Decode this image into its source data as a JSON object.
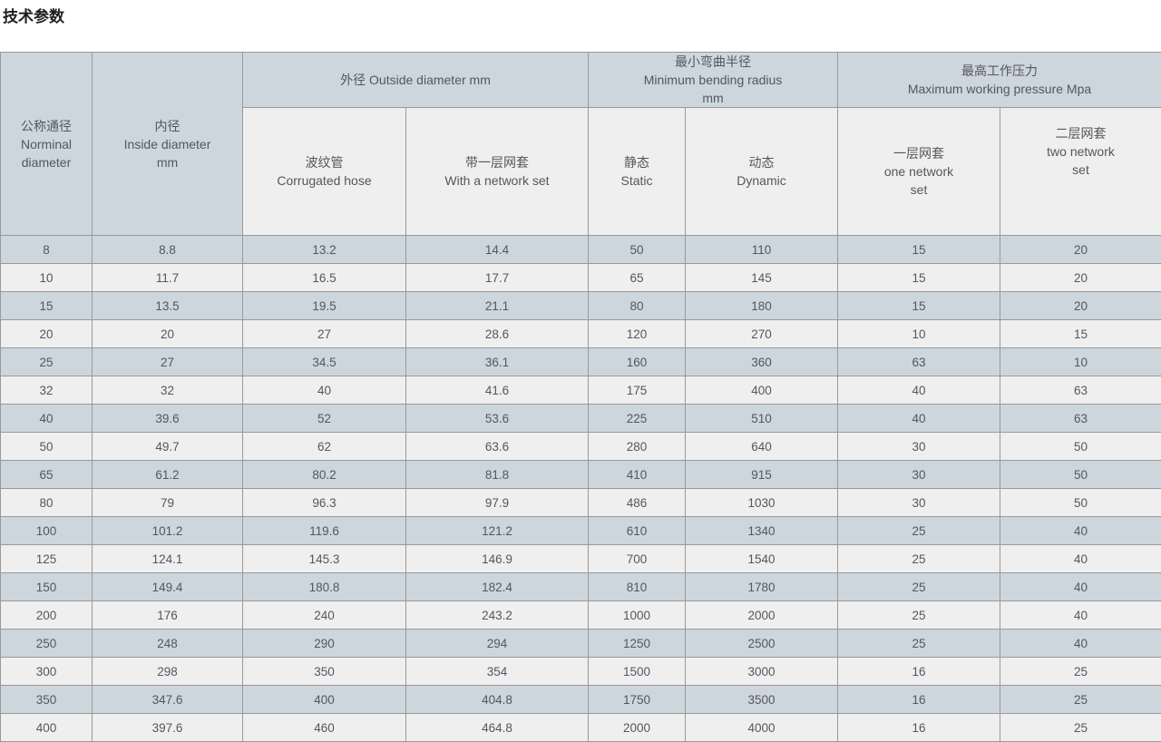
{
  "page": {
    "title": "技术参数"
  },
  "colors": {
    "header_blue": "#cdd6dd",
    "row_light": "#efefef",
    "border": "#999999",
    "text": "#54575b",
    "title_color": "#1f1f1f"
  },
  "table": {
    "headers": {
      "nominal_diameter": [
        "公称通径",
        "Norminal",
        "diameter"
      ],
      "inside_diameter": [
        "内径",
        "Inside diameter",
        "mm"
      ],
      "outside_diameter_group": [
        "外径 Outside diameter mm"
      ],
      "bending_radius_group": [
        "最小弯曲半径",
        "Minimum bending radius",
        "mm"
      ],
      "working_pressure_group": [
        "最高工作压力",
        "Maximum working pressure Mpa"
      ],
      "corrugated_hose": [
        "波纹管",
        "Corrugated hose"
      ],
      "with_network_set": [
        "带一层网套",
        "With a network set"
      ],
      "static": [
        "静态",
        "Static"
      ],
      "dynamic": [
        "动态",
        "Dynamic"
      ],
      "one_network_set": [
        "一层网套",
        "one network",
        "set"
      ],
      "two_network_set": [
        "二层网套",
        "two network",
        "set"
      ]
    },
    "rows": [
      [
        "8",
        "8.8",
        "13.2",
        "14.4",
        "50",
        "110",
        "15",
        "20"
      ],
      [
        "10",
        "11.7",
        "16.5",
        "17.7",
        "65",
        "145",
        "15",
        "20"
      ],
      [
        "15",
        "13.5",
        "19.5",
        "21.1",
        "80",
        "180",
        "15",
        "20"
      ],
      [
        "20",
        "20",
        "27",
        "28.6",
        "120",
        "270",
        "10",
        "15"
      ],
      [
        "25",
        "27",
        "34.5",
        "36.1",
        "160",
        "360",
        "63",
        "10"
      ],
      [
        "32",
        "32",
        "40",
        "41.6",
        "175",
        "400",
        "40",
        "63"
      ],
      [
        "40",
        "39.6",
        "52",
        "53.6",
        "225",
        "510",
        "40",
        "63"
      ],
      [
        "50",
        "49.7",
        "62",
        "63.6",
        "280",
        "640",
        "30",
        "50"
      ],
      [
        "65",
        "61.2",
        "80.2",
        "81.8",
        "410",
        "915",
        "30",
        "50"
      ],
      [
        "80",
        "79",
        "96.3",
        "97.9",
        "486",
        "1030",
        "30",
        "50"
      ],
      [
        "100",
        "101.2",
        "119.6",
        "121.2",
        "610",
        "1340",
        "25",
        "40"
      ],
      [
        "125",
        "124.1",
        "145.3",
        "146.9",
        "700",
        "1540",
        "25",
        "40"
      ],
      [
        "150",
        "149.4",
        "180.8",
        "182.4",
        "810",
        "1780",
        "25",
        "40"
      ],
      [
        "200",
        "176",
        "240",
        "243.2",
        "1000",
        "2000",
        "25",
        "40"
      ],
      [
        "250",
        "248",
        "290",
        "294",
        "1250",
        "2500",
        "25",
        "40"
      ],
      [
        "300",
        "298",
        "350",
        "354",
        "1500",
        "3000",
        "16",
        "25"
      ],
      [
        "350",
        "347.6",
        "400",
        "404.8",
        "1750",
        "3500",
        "16",
        "25"
      ],
      [
        "400",
        "397.6",
        "460",
        "464.8",
        "2000",
        "4000",
        "16",
        "25"
      ]
    ]
  }
}
